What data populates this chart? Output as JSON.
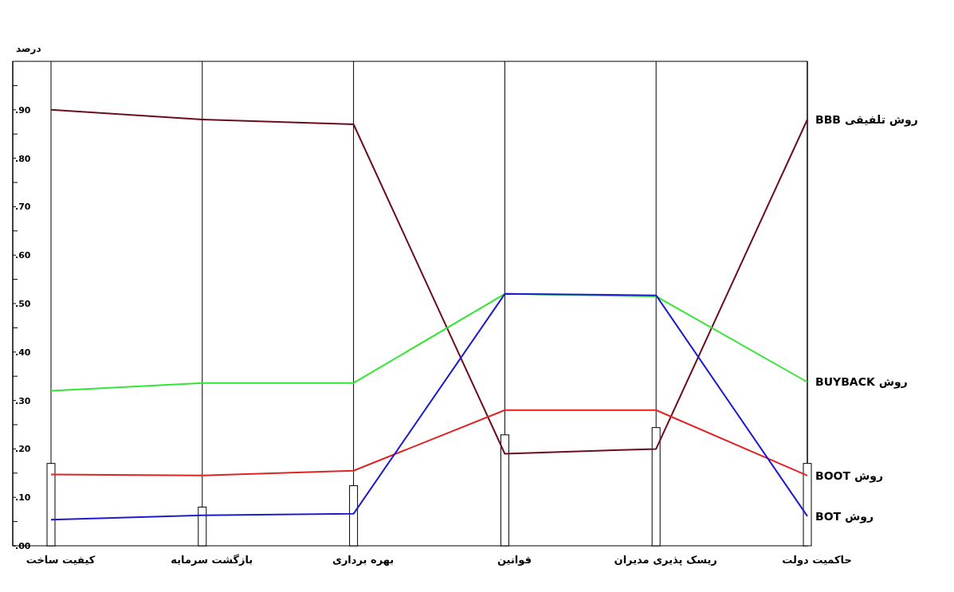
{
  "chart_data": {
    "type": "line",
    "ylabel": "درصد",
    "categories": [
      "کیفیت ساخت",
      "بازگشت سرمایه",
      "بهره برداری",
      "قوانین",
      "ریسک پذیری مدیران",
      "حاکمیت دولت"
    ],
    "series": [
      {
        "type": "bar",
        "color": "#ffffff",
        "values": [
          0.17,
          0.08,
          0.124,
          0.229,
          0.244,
          0.17
        ]
      },
      {
        "name": "روش تلفیقی BBB",
        "color": "#6b0d1c",
        "values": [
          0.9,
          0.88,
          0.87,
          0.19,
          0.2,
          0.88
        ]
      },
      {
        "name": "روش BUYBACK",
        "color": "#33e633",
        "values": [
          0.32,
          0.336,
          0.336,
          0.52,
          0.515,
          0.338
        ]
      },
      {
        "name": "روش BOOT",
        "color": "#e02424",
        "values": [
          0.147,
          0.145,
          0.155,
          0.28,
          0.28,
          0.145
        ]
      },
      {
        "name": "روش BOT",
        "color": "#1c1ccc",
        "values": [
          0.054,
          0.063,
          0.066,
          0.52,
          0.517,
          0.061
        ]
      }
    ],
    "ylim": [
      0,
      1
    ],
    "yticks": [
      {
        "value": 0,
        "label": ".00"
      },
      {
        "value": 0.05,
        "label": null
      },
      {
        "value": 0.1,
        "label": ".10"
      },
      {
        "value": 0.15,
        "label": null
      },
      {
        "value": 0.2,
        "label": ".20"
      },
      {
        "value": 0.25,
        "label": null
      },
      {
        "value": 0.3,
        "label": ".30"
      },
      {
        "value": 0.35,
        "label": null
      },
      {
        "value": 0.4,
        "label": ".40"
      },
      {
        "value": 0.45,
        "label": null
      },
      {
        "value": 0.5,
        "label": ".50"
      },
      {
        "value": 0.55,
        "label": null
      },
      {
        "value": 0.6,
        "label": ".60"
      },
      {
        "value": 0.65,
        "label": null
      },
      {
        "value": 0.7,
        "label": ".70"
      },
      {
        "value": 0.75,
        "label": null
      },
      {
        "value": 0.8,
        "label": ".80"
      },
      {
        "value": 0.85,
        "label": null
      },
      {
        "value": 0.9,
        "label": ".90"
      },
      {
        "value": 0.95,
        "label": null
      }
    ],
    "grid": "x"
  }
}
